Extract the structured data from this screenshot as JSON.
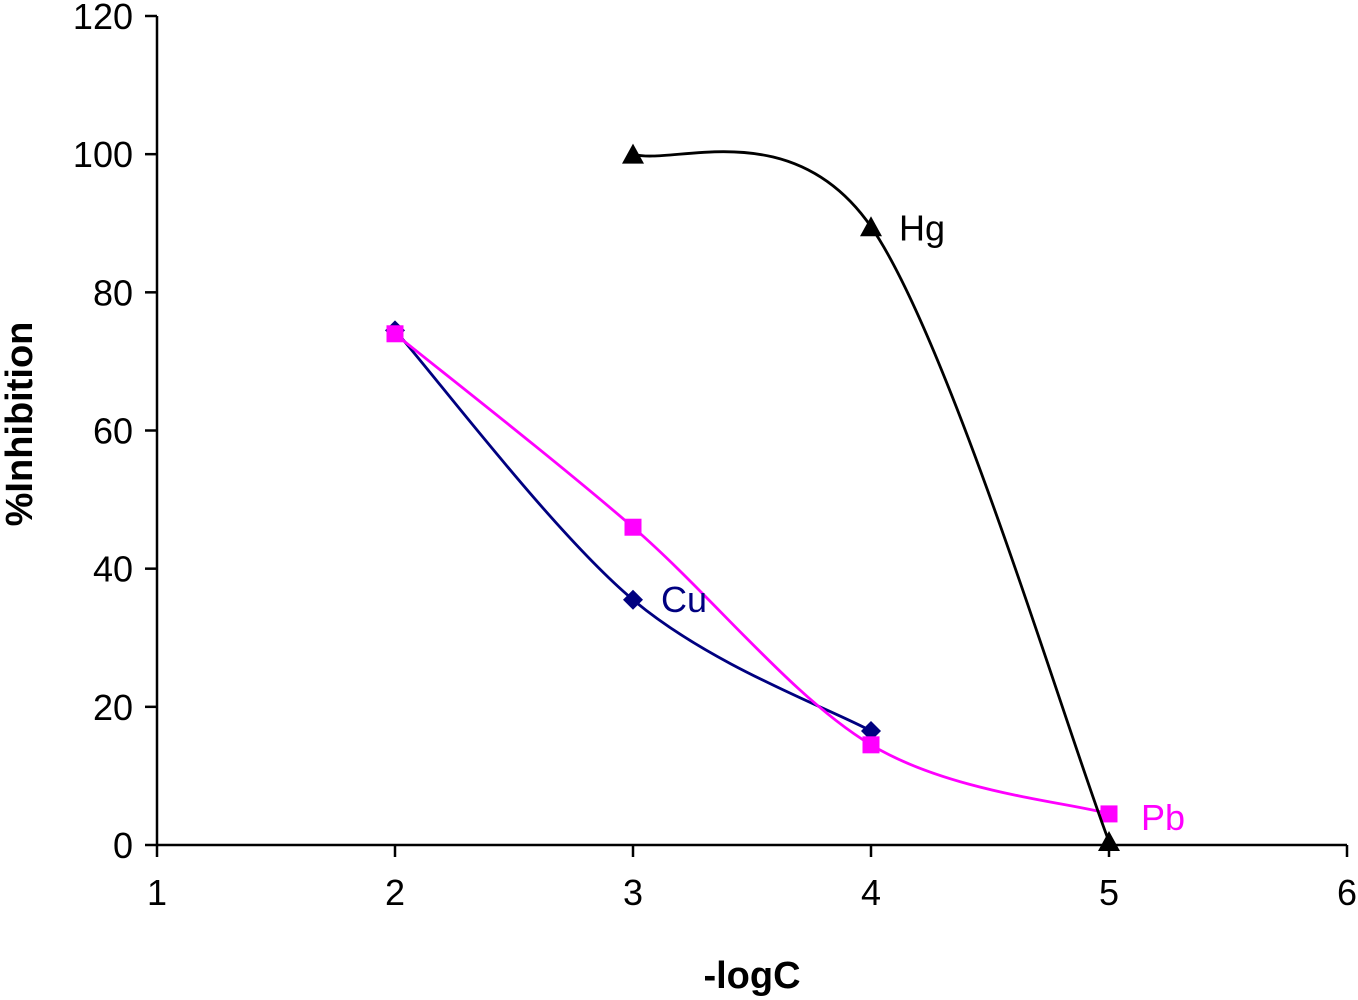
{
  "chart_data": {
    "type": "line",
    "xlabel": "-logC",
    "ylabel": "%Inhibition",
    "xlim": [
      1,
      6
    ],
    "ylim": [
      0,
      120
    ],
    "xticks": [
      1,
      2,
      3,
      4,
      5,
      6
    ],
    "yticks": [
      0,
      20,
      40,
      60,
      80,
      100,
      120
    ],
    "grid": false,
    "legend": "none",
    "series": [
      {
        "name": "Cu",
        "color": "#000080",
        "marker": "diamond",
        "x": [
          2,
          3,
          4
        ],
        "y": [
          74.5,
          35.5,
          16.5
        ]
      },
      {
        "name": "Pb",
        "color": "#FF00FF",
        "marker": "square",
        "x": [
          2,
          3,
          4,
          5
        ],
        "y": [
          74,
          46,
          14.5,
          4.5
        ]
      },
      {
        "name": "Hg",
        "color": "#000000",
        "marker": "triangle",
        "x": [
          3,
          4,
          5
        ],
        "y": [
          100,
          89.5,
          0.5
        ]
      }
    ]
  }
}
